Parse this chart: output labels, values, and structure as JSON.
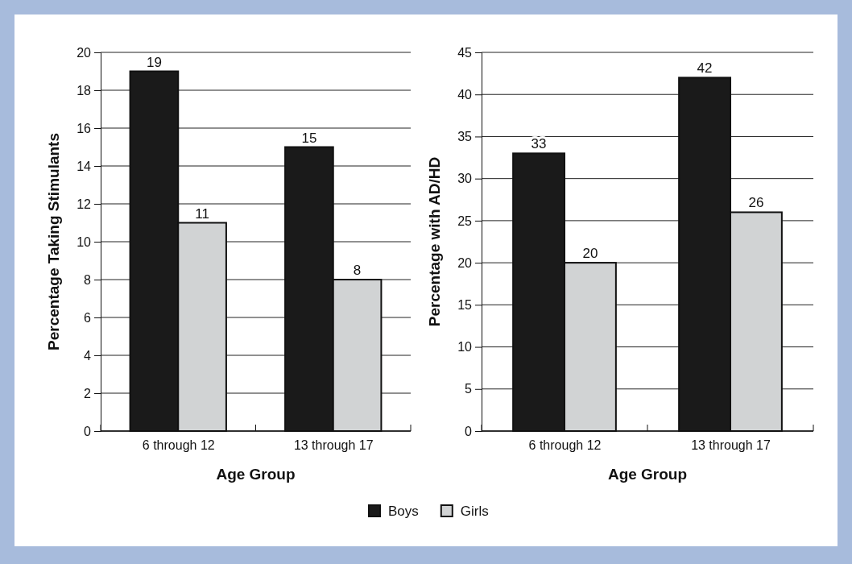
{
  "chart_data": [
    {
      "type": "bar",
      "categories": [
        "6 through 12",
        "13 through 17"
      ],
      "xlabel": "Age Group",
      "ylabel": "Percentage Taking Stimulants",
      "ylim": [
        0,
        20
      ],
      "yticks": [
        0,
        2,
        4,
        6,
        8,
        10,
        12,
        14,
        16,
        18,
        20
      ],
      "grid": "y",
      "data_labels": true,
      "legend": "bottom",
      "series": [
        {
          "name": "Boys",
          "color": "#1a1a1a",
          "values": [
            19,
            15
          ]
        },
        {
          "name": "Girls",
          "color": "#d1d3d4",
          "values": [
            11,
            8
          ]
        }
      ]
    },
    {
      "type": "bar",
      "categories": [
        "6 through 12",
        "13 through 17"
      ],
      "xlabel": "Age Group",
      "ylabel": "Percentage with AD/HD",
      "ylim": [
        0,
        45
      ],
      "yticks": [
        0,
        5,
        10,
        15,
        20,
        25,
        30,
        35,
        40,
        45
      ],
      "grid": "y",
      "data_labels": true,
      "legend": "bottom",
      "series": [
        {
          "name": "Boys",
          "color": "#1a1a1a",
          "values": [
            33,
            42
          ]
        },
        {
          "name": "Girls",
          "color": "#d1d3d4",
          "values": [
            20,
            26
          ]
        }
      ]
    }
  ]
}
